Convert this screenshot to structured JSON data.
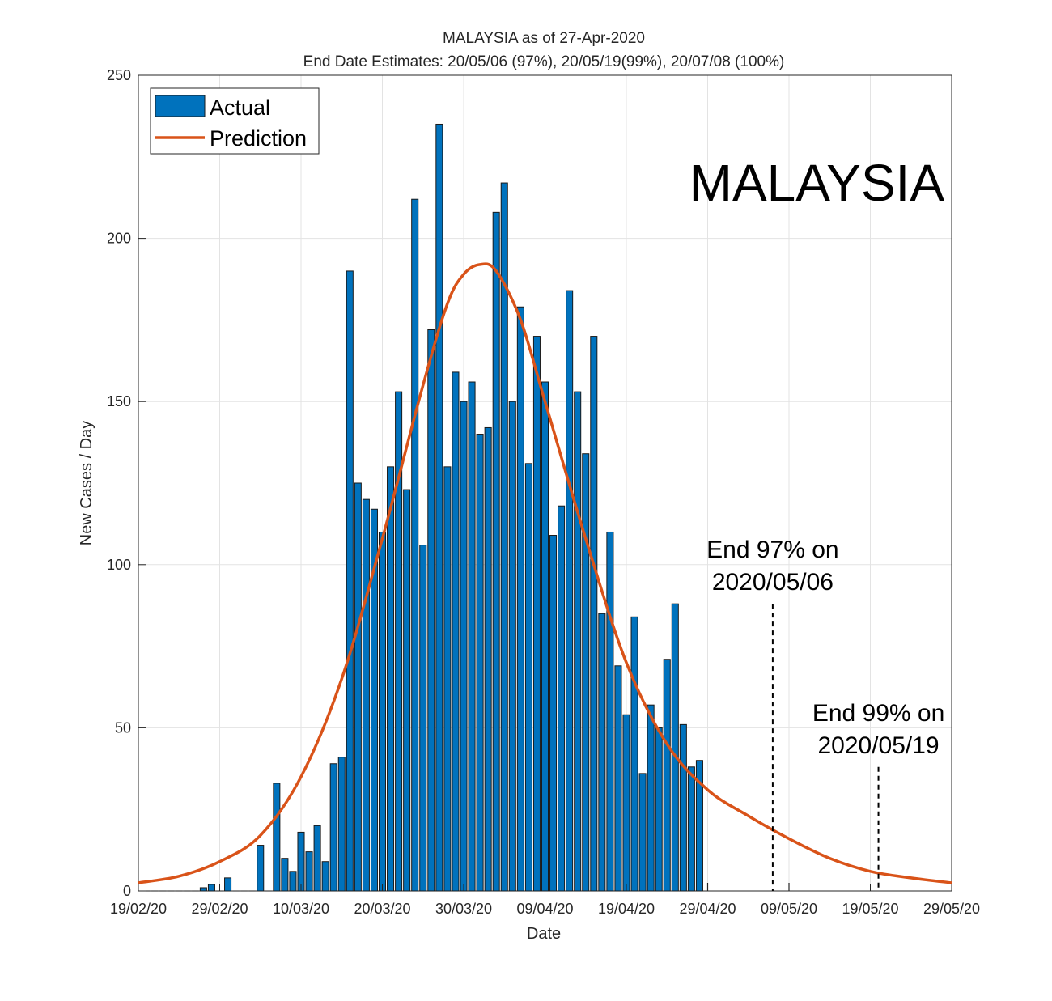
{
  "chart_data": {
    "type": "bar",
    "title": "MALAYSIA as of 27-Apr-2020",
    "subtitle": "End Date Estimates: 20/05/06 (97%), 20/05/19(99%), 20/07/08 (100%)",
    "xlabel": "Date",
    "ylabel": "New Cases / Day",
    "watermark": "MALAYSIA",
    "x_start_date": "19/02/20",
    "x_range_days": [
      0,
      100
    ],
    "ylim": [
      0,
      250
    ],
    "yticks": [
      0,
      50,
      100,
      150,
      200,
      250
    ],
    "xticks": [
      {
        "day": 0,
        "label": "19/02/20"
      },
      {
        "day": 10,
        "label": "29/02/20"
      },
      {
        "day": 20,
        "label": "10/03/20"
      },
      {
        "day": 30,
        "label": "20/03/20"
      },
      {
        "day": 40,
        "label": "30/03/20"
      },
      {
        "day": 50,
        "label": "09/04/20"
      },
      {
        "day": 60,
        "label": "19/04/20"
      },
      {
        "day": 70,
        "label": "29/04/20"
      },
      {
        "day": 80,
        "label": "09/05/20"
      },
      {
        "day": 90,
        "label": "19/05/20"
      },
      {
        "day": 100,
        "label": "29/05/20"
      }
    ],
    "grid": true,
    "legend_position": "top-left",
    "series": [
      {
        "name": "Actual",
        "type": "bar",
        "color": "#0072BD",
        "first_day": 1,
        "values": [
          0,
          0,
          0,
          0,
          0,
          0,
          0,
          1,
          2,
          0,
          4,
          0,
          0,
          0,
          14,
          0,
          33,
          10,
          6,
          18,
          12,
          20,
          9,
          39,
          41,
          190,
          125,
          120,
          117,
          110,
          130,
          153,
          123,
          212,
          106,
          172,
          235,
          130,
          159,
          150,
          156,
          140,
          142,
          208,
          217,
          150,
          179,
          131,
          170,
          156,
          109,
          118,
          184,
          153,
          134,
          170,
          85,
          110,
          69,
          54,
          84,
          36,
          57,
          50,
          71,
          88,
          51,
          38,
          40
        ]
      },
      {
        "name": "Prediction",
        "type": "line",
        "color": "#D95319",
        "points": [
          {
            "day": 0,
            "value": 2.5
          },
          {
            "day": 5,
            "value": 4.5
          },
          {
            "day": 10,
            "value": 9
          },
          {
            "day": 15,
            "value": 17
          },
          {
            "day": 20,
            "value": 35
          },
          {
            "day": 25,
            "value": 65
          },
          {
            "day": 30,
            "value": 108
          },
          {
            "day": 35,
            "value": 155
          },
          {
            "day": 38,
            "value": 180
          },
          {
            "day": 40,
            "value": 189
          },
          {
            "day": 42,
            "value": 192
          },
          {
            "day": 44,
            "value": 190
          },
          {
            "day": 47,
            "value": 175
          },
          {
            "day": 50,
            "value": 150
          },
          {
            "day": 55,
            "value": 108
          },
          {
            "day": 60,
            "value": 70
          },
          {
            "day": 65,
            "value": 45
          },
          {
            "day": 70,
            "value": 31
          },
          {
            "day": 75,
            "value": 23
          },
          {
            "day": 80,
            "value": 16
          },
          {
            "day": 85,
            "value": 10
          },
          {
            "day": 90,
            "value": 6
          },
          {
            "day": 95,
            "value": 4
          },
          {
            "day": 100,
            "value": 2.5
          }
        ]
      }
    ],
    "annotations": [
      {
        "line1": "End 97% on",
        "line2": "2020/05/06",
        "day": 78,
        "line_top_value": 88
      },
      {
        "line1": "End 99% on",
        "line2": "2020/05/19",
        "day": 91,
        "line_top_value": 38
      }
    ],
    "future_marker_days": [
      70,
      80
    ]
  }
}
